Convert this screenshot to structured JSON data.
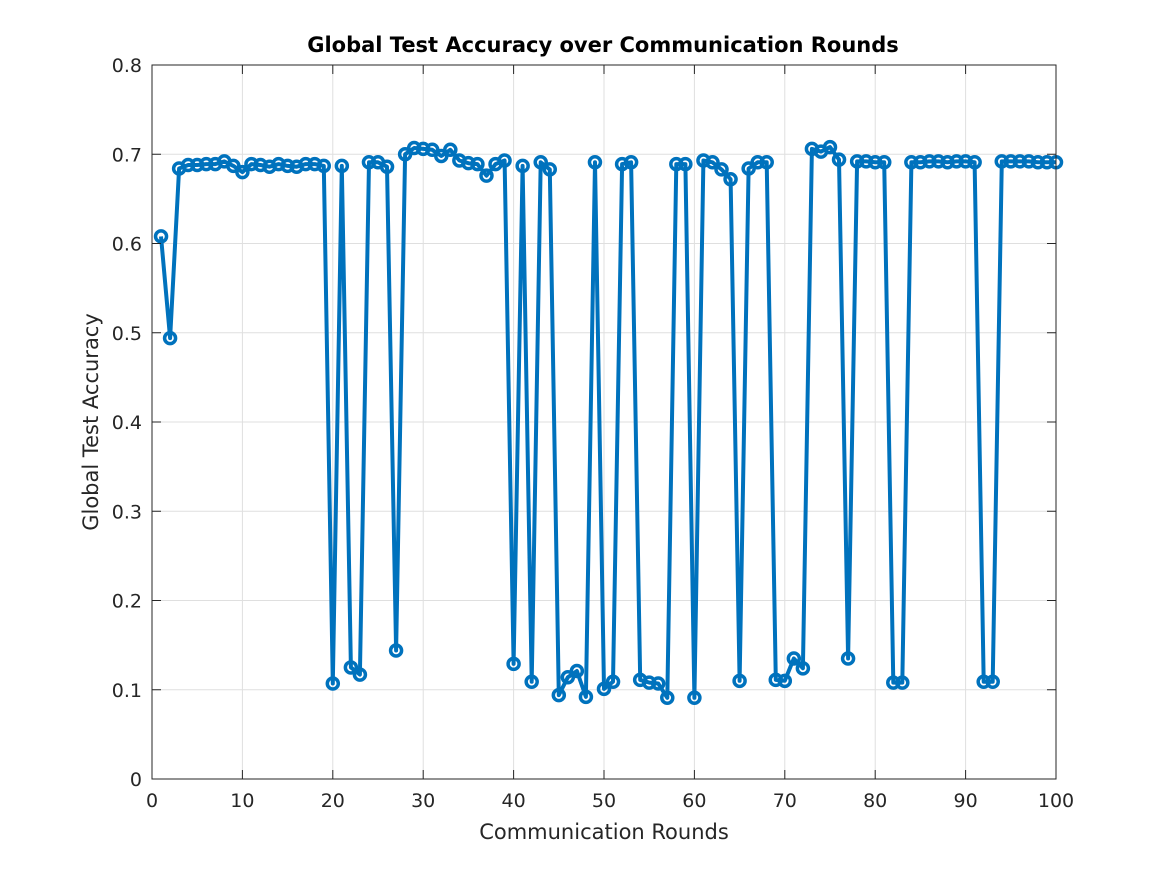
{
  "chart_data": {
    "type": "line",
    "title": "Global Test Accuracy over Communication Rounds",
    "xlabel": "Communication Rounds",
    "ylabel": "Global Test Accuracy",
    "xlim": [
      0,
      100
    ],
    "ylim": [
      0,
      0.8
    ],
    "xticks": [
      0,
      10,
      20,
      30,
      40,
      50,
      60,
      70,
      80,
      90,
      100
    ],
    "yticks": [
      0,
      0.1,
      0.2,
      0.3,
      0.4,
      0.5,
      0.6,
      0.7,
      0.8
    ],
    "grid": true,
    "marker": "circle",
    "colors": {
      "series": "#0072bd",
      "axis": "#262626",
      "grid": "#dfdfdf"
    },
    "series": [
      {
        "x": [
          1,
          2,
          3,
          4,
          5,
          6,
          7,
          8,
          9,
          10,
          11,
          12,
          13,
          14,
          15,
          16,
          17,
          18,
          19,
          20,
          21,
          22,
          23,
          24,
          25,
          26,
          27,
          28,
          29,
          30,
          31,
          32,
          33,
          34,
          35,
          36,
          37,
          38,
          39,
          40,
          41,
          42,
          43,
          44,
          45,
          46,
          47,
          48,
          49,
          50,
          51,
          52,
          53,
          54,
          55,
          56,
          57,
          58,
          59,
          60,
          61,
          62,
          63,
          64,
          65,
          66,
          67,
          68,
          69,
          70,
          71,
          72,
          73,
          74,
          75,
          76,
          77,
          78,
          79,
          80,
          81,
          82,
          83,
          84,
          85,
          86,
          87,
          88,
          89,
          90,
          91,
          92,
          93,
          94,
          95,
          96,
          97,
          98,
          99,
          100
        ],
        "values": [
          0.608,
          0.494,
          0.684,
          0.688,
          0.688,
          0.689,
          0.689,
          0.692,
          0.687,
          0.68,
          0.689,
          0.688,
          0.686,
          0.689,
          0.687,
          0.686,
          0.689,
          0.689,
          0.687,
          0.107,
          0.687,
          0.125,
          0.117,
          0.691,
          0.691,
          0.686,
          0.144,
          0.7,
          0.707,
          0.706,
          0.705,
          0.698,
          0.705,
          0.693,
          0.69,
          0.689,
          0.676,
          0.689,
          0.693,
          0.129,
          0.687,
          0.109,
          0.691,
          0.683,
          0.094,
          0.114,
          0.121,
          0.092,
          0.691,
          0.101,
          0.109,
          0.689,
          0.691,
          0.111,
          0.108,
          0.107,
          0.091,
          0.689,
          0.689,
          0.091,
          0.693,
          0.691,
          0.683,
          0.672,
          0.11,
          0.684,
          0.691,
          0.691,
          0.111,
          0.11,
          0.135,
          0.124,
          0.706,
          0.703,
          0.708,
          0.694,
          0.135,
          0.692,
          0.692,
          0.691,
          0.691,
          0.108,
          0.108,
          0.691,
          0.691,
          0.692,
          0.692,
          0.691,
          0.692,
          0.692,
          0.691,
          0.109,
          0.109,
          0.692,
          0.692,
          0.692,
          0.692,
          0.691,
          0.691,
          0.691
        ]
      }
    ]
  }
}
